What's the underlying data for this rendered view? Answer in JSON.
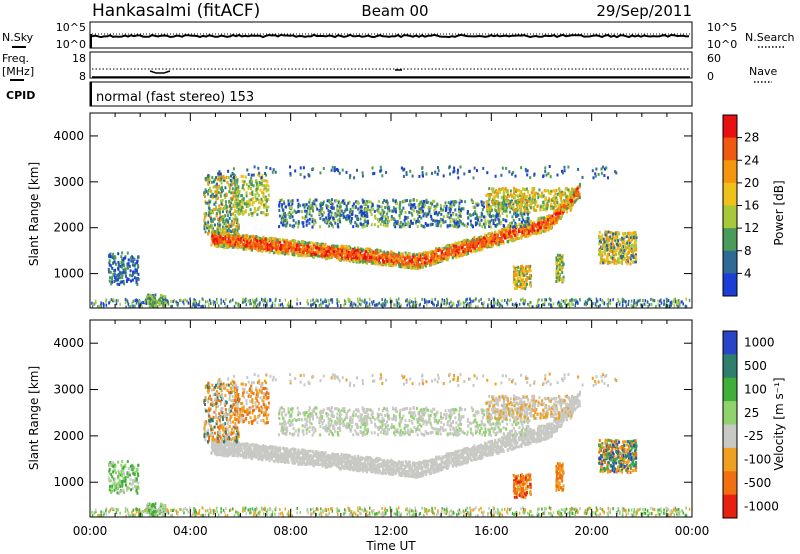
{
  "header": {
    "station": "Hankasalmi (fitACF)",
    "beam": "Beam 00",
    "date": "29/Sep/2011"
  },
  "noise_panel": {
    "left_label": "N.Sky",
    "right_label": "N.Search",
    "left_ticks": [
      "10^5",
      "10^0"
    ],
    "right_ticks": [
      "10^5",
      "10^0"
    ]
  },
  "freq_panel": {
    "left_label_1": "Freq.",
    "left_label_2": "[MHz]",
    "right_label": "Nave",
    "left_ticks": [
      "18",
      "8"
    ],
    "right_ticks": [
      "60",
      "0"
    ]
  },
  "cpid": {
    "label": "CPID",
    "value": "normal (fast stereo) 153"
  },
  "chart_data": [
    {
      "type": "heatmap",
      "name": "power",
      "ylabel": "Slant Range [km]",
      "xlim": [
        0,
        24
      ],
      "ylim": [
        250,
        4500
      ],
      "yticks": [
        "1000",
        "2000",
        "3000",
        "4000"
      ],
      "colorbar": {
        "label": "Power [dB]",
        "ticks": [
          "28",
          "24",
          "20",
          "16",
          "12",
          "8",
          "4"
        ],
        "colors": [
          "#e81010",
          "#f05a10",
          "#f5960f",
          "#eec21a",
          "#a8c83a",
          "#4a9a5a",
          "#2f6a96",
          "#1b3fd6"
        ]
      }
    },
    {
      "type": "heatmap",
      "name": "velocity",
      "ylabel": "Slant Range [km]",
      "xlabel": "Time UT",
      "xlim": [
        0,
        24
      ],
      "ylim": [
        250,
        4500
      ],
      "yticks": [
        "1000",
        "2000",
        "3000",
        "4000"
      ],
      "xticks": [
        "00:00",
        "04:00",
        "08:00",
        "12:00",
        "16:00",
        "20:00",
        "00:00"
      ],
      "colorbar": {
        "label": "Velocity [m s⁻¹]",
        "ticks": [
          "1000",
          "500",
          "100",
          "25",
          "-25",
          "-100",
          "-500",
          "-1000"
        ],
        "colors": [
          "#2845c8",
          "#2f7f6f",
          "#3fae3a",
          "#8fd46a",
          "#c8c8c4",
          "#f0a020",
          "#f07010",
          "#e82010"
        ]
      }
    }
  ]
}
